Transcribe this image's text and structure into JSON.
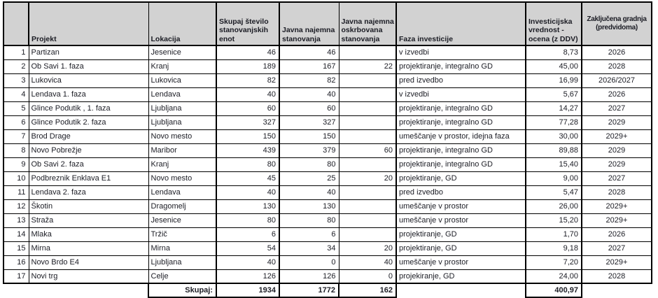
{
  "colors": {
    "background": "#ffffff",
    "header_bg": "#d2d2d2",
    "border": "#000000",
    "text": "#1b1c24"
  },
  "table": {
    "headers": [
      "",
      "Projekt",
      "Lokacija",
      "Skupaj število stanovanjskih enot",
      "Javna najemna stanovanja",
      "Javna najemna oskrbovana stanovanja",
      "Faza investicije",
      "Investicijska vrednost - ocena (z DDV)",
      "Zaključena gradnja (predvidoma)"
    ],
    "rows": [
      {
        "cells": [
          "1",
          "Partizan",
          "Jesenice",
          "46",
          "46",
          "",
          "v izvedbi",
          "8,73",
          "2026"
        ]
      },
      {
        "cells": [
          "2",
          "Ob Savi 1. faza",
          "Kranj",
          "189",
          "167",
          "22",
          "projektiranje, integralno GD",
          "45,00",
          "2028"
        ]
      },
      {
        "cells": [
          "3",
          "Lukovica",
          "Lukovica",
          "82",
          "82",
          "",
          "pred izvedbo",
          "16,99",
          "2026/2027"
        ]
      },
      {
        "cells": [
          "4",
          "Lendava 1. faza",
          "Lendava",
          "40",
          "40",
          "",
          "v izvedbi",
          "5,67",
          "2026"
        ]
      },
      {
        "cells": [
          "5",
          "Glince Podutik , 1. faza",
          "Ljubljana",
          "60",
          "60",
          "",
          "projektiranje, integralno GD",
          "14,27",
          "2027"
        ]
      },
      {
        "cells": [
          "6",
          "Glince Podutik 2. faza",
          "Ljubljana",
          "327",
          "327",
          "",
          "projektiranje, integralno GD",
          "77,28",
          "2029"
        ]
      },
      {
        "cells": [
          "7",
          "Brod Drage",
          "Novo mesto",
          "150",
          "150",
          "",
          "umeščanje v prostor, idejna faza",
          "30,00",
          "2029+"
        ]
      },
      {
        "cells": [
          "8",
          "Novo Pobrežje",
          "Maribor",
          "439",
          "379",
          "60",
          "projektiranje, integralno GD",
          "89,88",
          "2029"
        ]
      },
      {
        "cells": [
          "9",
          "Ob Savi 2. faza",
          "Kranj",
          "80",
          "80",
          "",
          "projektiranje, integralno GD",
          "15,40",
          "2029"
        ]
      },
      {
        "cells": [
          "10",
          "Podbreznik Enklava E1",
          "Novo mesto",
          "45",
          "25",
          "20",
          "projektiranje, GD",
          "9,00",
          "2027"
        ]
      },
      {
        "cells": [
          "11",
          "Lendava 2. faza",
          "Lendava",
          "40",
          "40",
          "",
          "pred izvedbo",
          "5,47",
          "2028"
        ]
      },
      {
        "cells": [
          "12",
          "Škotin",
          "Dragomelj",
          "130",
          "130",
          "",
          "umeščanje v prostor",
          "26,00",
          "2029+"
        ]
      },
      {
        "cells": [
          "13",
          "Straža",
          "Jesenice",
          "80",
          "80",
          "",
          "umeščanje v prostor",
          "15,20",
          "2029+"
        ]
      },
      {
        "cells": [
          "14",
          "Mlaka",
          "Tržič",
          "6",
          "6",
          "",
          "projektiranje, GD",
          "1,70",
          "2026"
        ]
      },
      {
        "cells": [
          "15",
          "Mirna",
          "Mirna",
          "54",
          "34",
          "20",
          "projektiranje, GD",
          "9,18",
          "2027"
        ]
      },
      {
        "cells": [
          "16",
          "Novo Brdo E4",
          "Ljubljana",
          "40",
          "0",
          "40",
          "umeščanje v prostor",
          "7,20",
          "2029+"
        ]
      },
      {
        "cells": [
          "17",
          "Novi trg",
          "Celje",
          "126",
          "126",
          "0",
          "projekiranje, GD",
          "24,00",
          "2028"
        ]
      }
    ],
    "total": {
      "cells": [
        "",
        "",
        "Skupaj:",
        "1934",
        "1772",
        "162",
        "",
        "400,97",
        ""
      ]
    }
  }
}
